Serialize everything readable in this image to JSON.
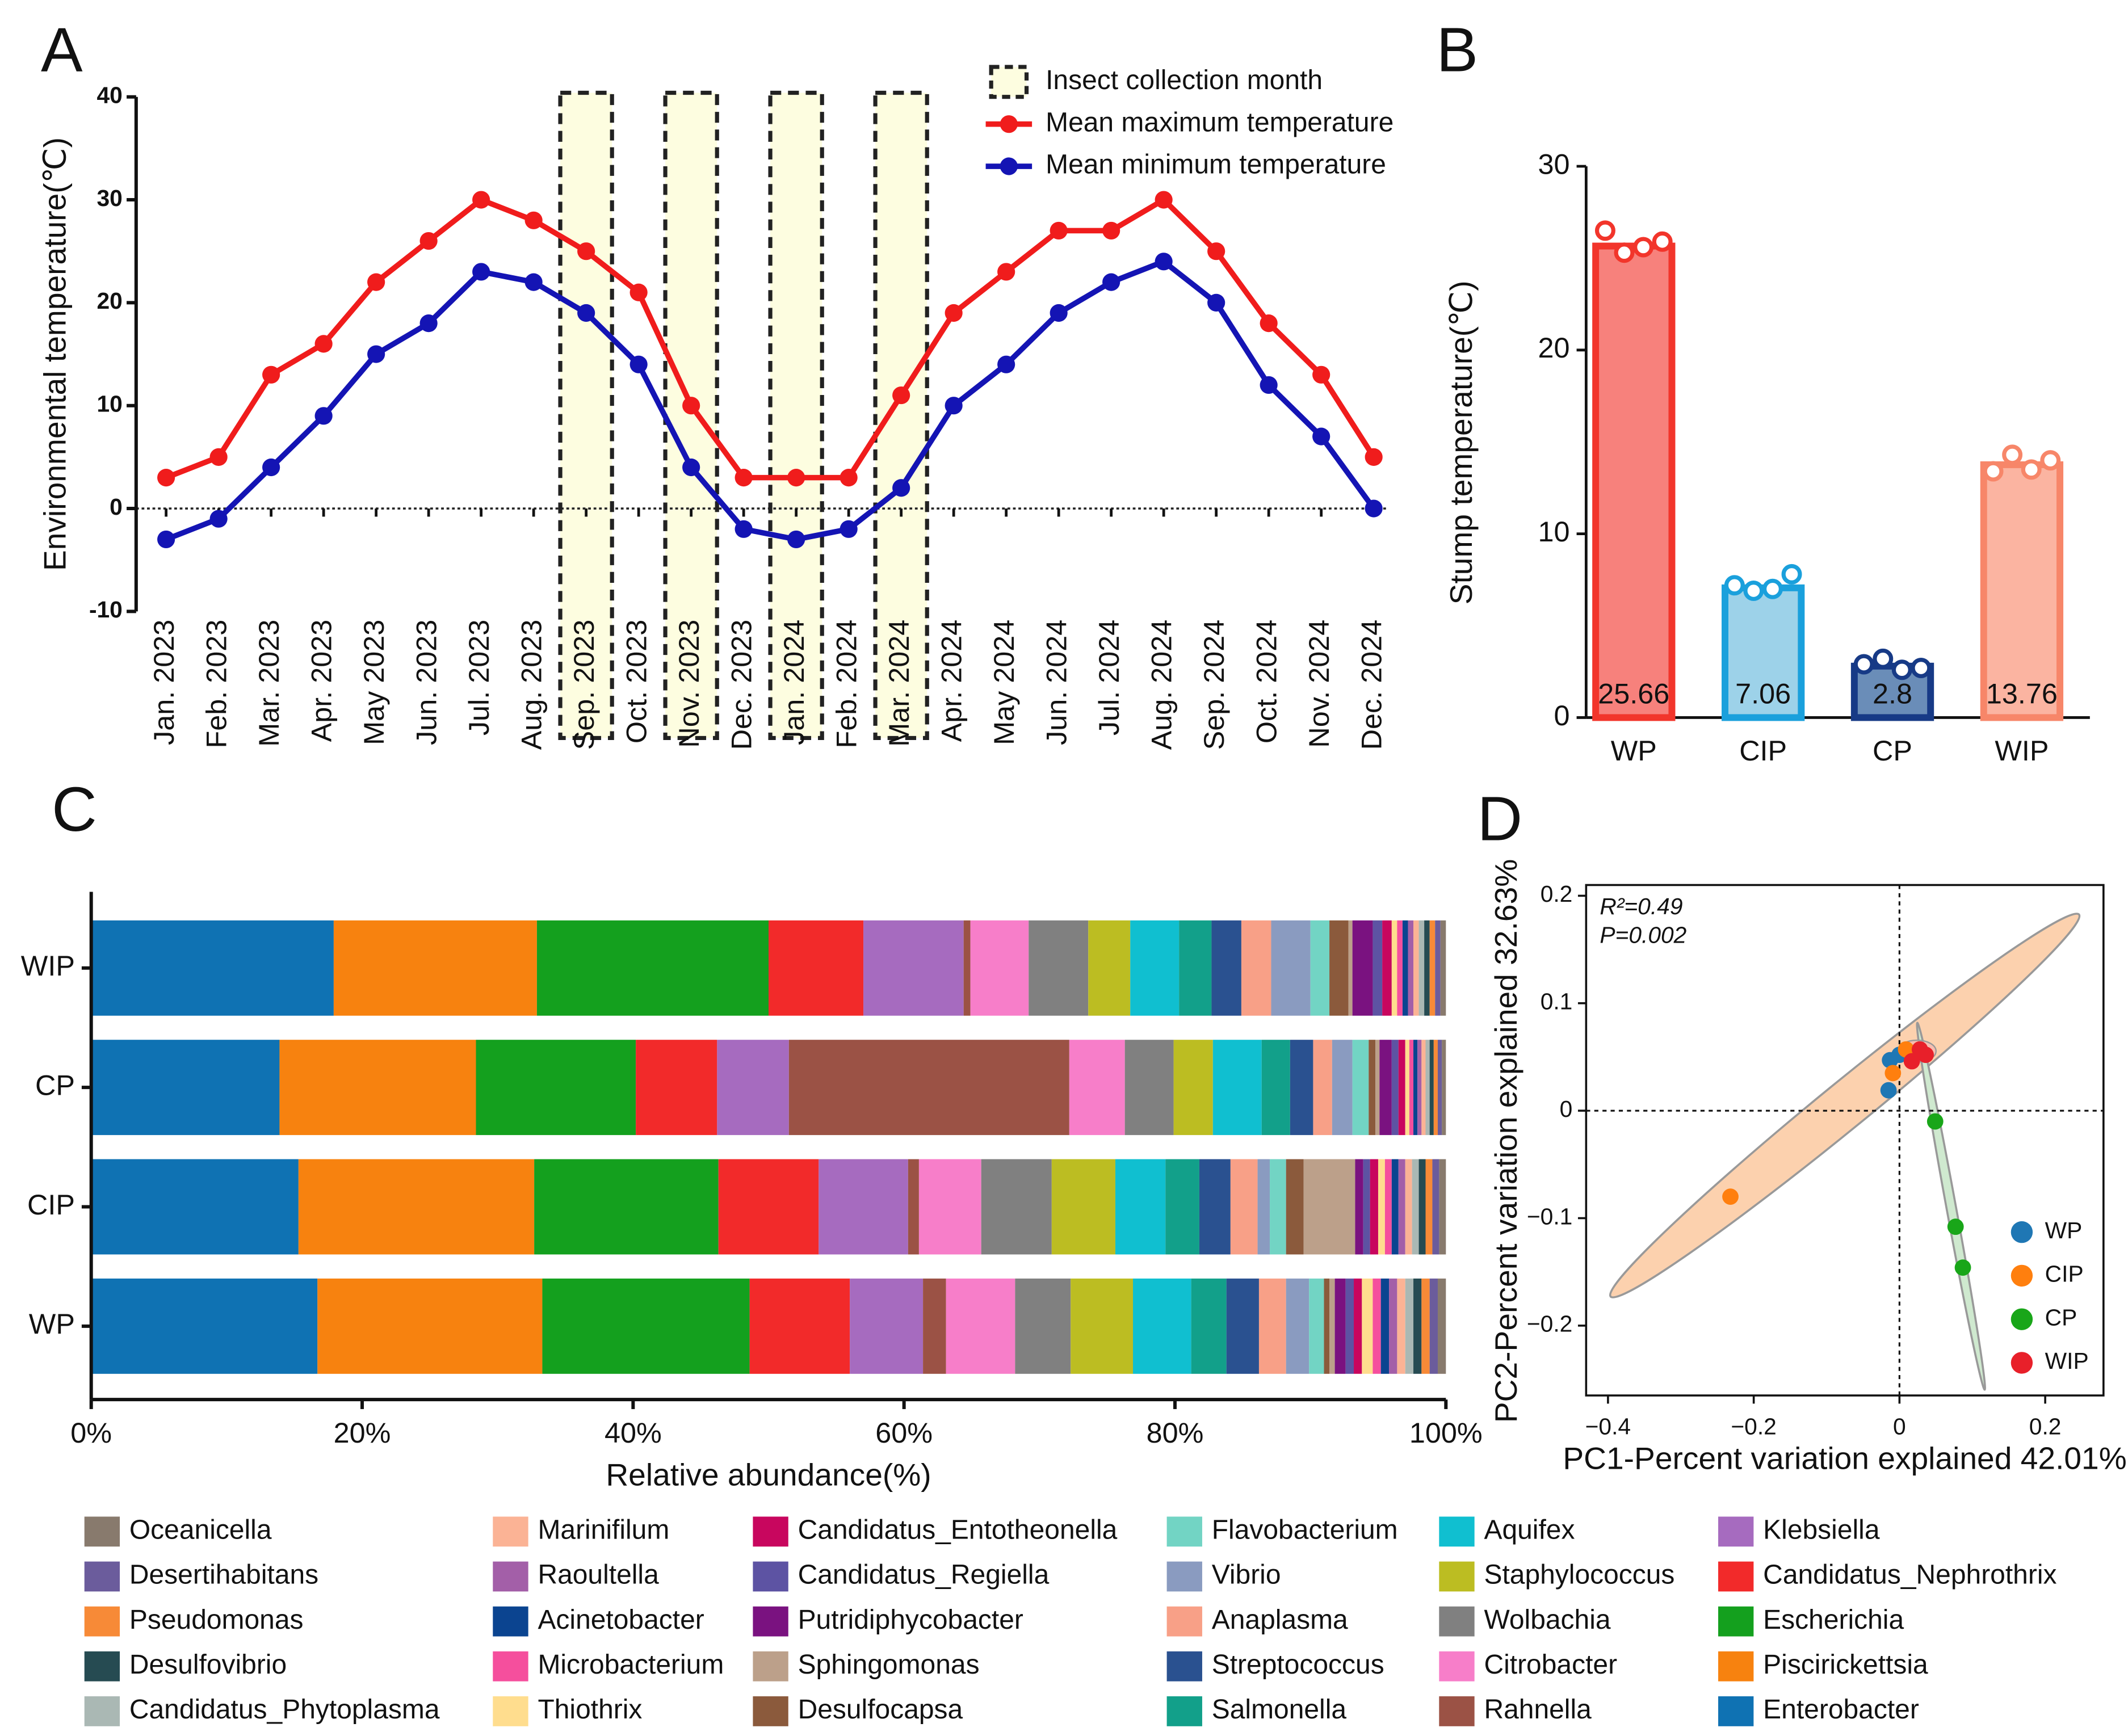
{
  "chart_data": [
    {
      "type": "line",
      "panel": "A",
      "y_label": "Environmental temperature(℃)",
      "categories": [
        "Jan. 2023",
        "Feb. 2023",
        "Mar. 2023",
        "Apr. 2023",
        "May 2023",
        "Jun. 2023",
        "Jul. 2023",
        "Aug. 2023",
        "Sep. 2023",
        "Oct. 2023",
        "Nov. 2023",
        "Dec. 2023",
        "Jan. 2024",
        "Feb. 2024",
        "Mar. 2024",
        "Apr. 2024",
        "May 2024",
        "Jun. 2024",
        "Jul. 2024",
        "Aug. 2024",
        "Sep. 2024",
        "Oct. 2024",
        "Nov. 2024",
        "Dec. 2024"
      ],
      "highlight": {
        "name": "Insect collection month",
        "color": "#fdfde0",
        "categories": [
          "Sep. 2023",
          "Nov. 2023",
          "Jan. 2024",
          "Mar. 2024"
        ]
      },
      "series": [
        {
          "name": "Mean maximum temperature",
          "color": "#f01c1c",
          "values": [
            3,
            5,
            13,
            16,
            22,
            26,
            30,
            28,
            25,
            21,
            10,
            3,
            3,
            3,
            11,
            19,
            23,
            27,
            27,
            30,
            25,
            18,
            13,
            5
          ]
        },
        {
          "name": "Mean minimum temperature",
          "color": "#1414b4",
          "values": [
            -3,
            -1,
            4,
            9,
            15,
            18,
            23,
            22,
            19,
            14,
            4,
            -2,
            -3,
            -2,
            2,
            10,
            14,
            19,
            22,
            24,
            20,
            12,
            7,
            0
          ]
        }
      ],
      "ylim": [
        -10,
        40
      ],
      "yticks": [
        -10,
        0,
        10,
        20,
        30,
        40
      ]
    },
    {
      "type": "bar",
      "panel": "B",
      "y_label": "Stump temperature(℃)",
      "categories": [
        "WP",
        "CIP",
        "CP",
        "WIP"
      ],
      "values": [
        25.66,
        7.06,
        2.8,
        13.76
      ],
      "colors": [
        "#f2352b",
        "#1aa0dc",
        "#173a86",
        "#f78669"
      ],
      "fill_colors": [
        "#f7817c",
        "#9dd2e9",
        "#6a8db8",
        "#fbb4a1"
      ],
      "points": [
        [
          26.5,
          25.3,
          25.6,
          25.9
        ],
        [
          7.2,
          6.9,
          7.0,
          7.8
        ],
        [
          2.9,
          3.2,
          2.6,
          2.7
        ],
        [
          13.4,
          14.3,
          13.5,
          14.0
        ]
      ],
      "ylim": [
        0,
        30
      ],
      "yticks": [
        0,
        10,
        20,
        30
      ]
    },
    {
      "type": "stacked_barh",
      "panel": "C",
      "x_label": "Relative abundance(%)",
      "categories": [
        "WIP",
        "CP",
        "CIP",
        "WP"
      ],
      "xlim": [
        0,
        100
      ],
      "xticks": [
        {
          "value": 0,
          "label": "0%"
        },
        {
          "value": 20,
          "label": "20%"
        },
        {
          "value": 40,
          "label": "40%"
        },
        {
          "value": 60,
          "label": "60%"
        },
        {
          "value": 80,
          "label": "80%"
        },
        {
          "value": 100,
          "label": "100%"
        }
      ],
      "series": [
        {
          "name": "Enterobacter",
          "color": "#0f72b3",
          "values": [
            17.9,
            13.9,
            15.3,
            16.7
          ]
        },
        {
          "name": "Piscirickettsia",
          "color": "#f7820f",
          "values": [
            15.0,
            14.5,
            17.4,
            16.6
          ]
        },
        {
          "name": "Escherichia",
          "color": "#14a01e",
          "values": [
            17.1,
            11.8,
            13.6,
            15.3
          ]
        },
        {
          "name": "Candidatus_Nephrothrix",
          "color": "#f22a2a",
          "values": [
            7.0,
            6.0,
            7.4,
            7.4
          ]
        },
        {
          "name": "Klebsiella",
          "color": "#a66bbf",
          "values": [
            7.4,
            5.3,
            6.6,
            5.4
          ]
        },
        {
          "name": "Rahnella",
          "color": "#9b5245",
          "values": [
            0.5,
            20.7,
            0.8,
            1.7
          ]
        },
        {
          "name": "Citrobacter",
          "color": "#f77ec9",
          "values": [
            4.3,
            4.1,
            4.6,
            5.1
          ]
        },
        {
          "name": "Wolbachia",
          "color": "#808080",
          "values": [
            4.4,
            3.6,
            5.2,
            4.1
          ]
        },
        {
          "name": "Staphylococcus",
          "color": "#bcbd22",
          "values": [
            3.1,
            2.9,
            4.7,
            4.6
          ]
        },
        {
          "name": "Aquifex",
          "color": "#10bfd0",
          "values": [
            3.6,
            3.6,
            3.7,
            4.3
          ]
        },
        {
          "name": "Salmonella",
          "color": "#12a08a",
          "values": [
            2.4,
            2.1,
            2.5,
            2.6
          ]
        },
        {
          "name": "Streptococcus",
          "color": "#2a5190",
          "values": [
            2.2,
            1.7,
            2.3,
            2.4
          ]
        },
        {
          "name": "Anaplasma",
          "color": "#f8a087",
          "values": [
            2.2,
            1.4,
            2.0,
            2.0
          ]
        },
        {
          "name": "Vibrio",
          "color": "#8a9bc0",
          "values": [
            2.9,
            1.5,
            0.9,
            1.7
          ]
        },
        {
          "name": "Flavobacterium",
          "color": "#72d4c4",
          "values": [
            1.4,
            1.2,
            1.2,
            1.1
          ]
        },
        {
          "name": "Desulfocapsa",
          "color": "#8b5a3c",
          "values": [
            1.4,
            0.5,
            1.3,
            0.4
          ]
        },
        {
          "name": "Sphingomonas",
          "color": "#bca08a",
          "values": [
            0.3,
            0.3,
            3.8,
            0.4
          ]
        },
        {
          "name": "Putridiphycobacter",
          "color": "#7a1280",
          "values": [
            1.5,
            0.9,
            0.6,
            0.8
          ]
        },
        {
          "name": "Candidatus_Regiella",
          "color": "#5d53a3",
          "values": [
            0.7,
            0.5,
            0.5,
            0.6
          ]
        },
        {
          "name": "Candidatus_Entotheonella",
          "color": "#c8065e",
          "values": [
            0.7,
            0.5,
            0.6,
            0.6
          ]
        },
        {
          "name": "Thiothrix",
          "color": "#ffdd8e",
          "values": [
            0.4,
            0.3,
            0.5,
            0.8
          ]
        },
        {
          "name": "Microbacterium",
          "color": "#f54f9d",
          "values": [
            0.4,
            0.3,
            0.5,
            0.6
          ]
        },
        {
          "name": "Acinetobacter",
          "color": "#0b4490",
          "values": [
            0.4,
            0.3,
            0.5,
            0.6
          ]
        },
        {
          "name": "Raoultella",
          "color": "#a35fa8",
          "values": [
            0.4,
            0.3,
            0.5,
            0.6
          ]
        },
        {
          "name": "Marinifilum",
          "color": "#fbb395",
          "values": [
            0.4,
            0.3,
            0.5,
            0.6
          ]
        },
        {
          "name": "Candidatus_Phytoplasma",
          "color": "#aab8b4",
          "values": [
            0.4,
            0.3,
            0.5,
            0.6
          ]
        },
        {
          "name": "Desulfovibrio",
          "color": "#264b52",
          "values": [
            0.4,
            0.3,
            0.5,
            0.6
          ]
        },
        {
          "name": "Pseudomonas",
          "color": "#f78a37",
          "values": [
            0.4,
            0.3,
            0.5,
            0.6
          ]
        },
        {
          "name": "Desertihabitans",
          "color": "#6b5c9c",
          "values": [
            0.4,
            0.3,
            0.5,
            0.6
          ]
        },
        {
          "name": "Oceanicella",
          "color": "#887a6d",
          "values": [
            0.4,
            0.3,
            0.5,
            0.6
          ]
        }
      ]
    },
    {
      "type": "scatter",
      "panel": "D",
      "x_label": "PC1-Percent variation explained 42.01%",
      "y_label": "PC2-Percent variation explained 32.63%",
      "annotations": [
        "R²=0.49",
        "P=0.002"
      ],
      "xlim": [
        -0.43,
        0.28
      ],
      "xticks": [
        {
          "value": -0.4,
          "label": "−0.4"
        },
        {
          "value": -0.2,
          "label": "−0.2"
        },
        0,
        0.2
      ],
      "ylim": [
        -0.265,
        0.21
      ],
      "yticks": [
        {
          "value": -0.2,
          "label": "−0.2"
        },
        {
          "value": -0.1,
          "label": "−0.1"
        },
        0,
        0.1,
        0.2
      ],
      "series": [
        {
          "name": "WP",
          "color": "#1f77b4",
          "x": [
            -0.013,
            -0.015,
            0.0
          ],
          "y": [
            0.047,
            0.019,
            0.052
          ]
        },
        {
          "name": "CIP",
          "color": "#ff7f0e",
          "x": [
            -0.232,
            -0.009,
            0.009
          ],
          "y": [
            -0.08,
            0.035,
            0.057
          ]
        },
        {
          "name": "CP",
          "color": "#19a619",
          "x": [
            0.049,
            0.077,
            0.087
          ],
          "y": [
            -0.01,
            -0.108,
            -0.146
          ]
        },
        {
          "name": "WIP",
          "color": "#e8202a",
          "x": [
            0.017,
            0.028,
            0.036
          ],
          "y": [
            0.046,
            0.057,
            0.052
          ]
        }
      ]
    }
  ]
}
